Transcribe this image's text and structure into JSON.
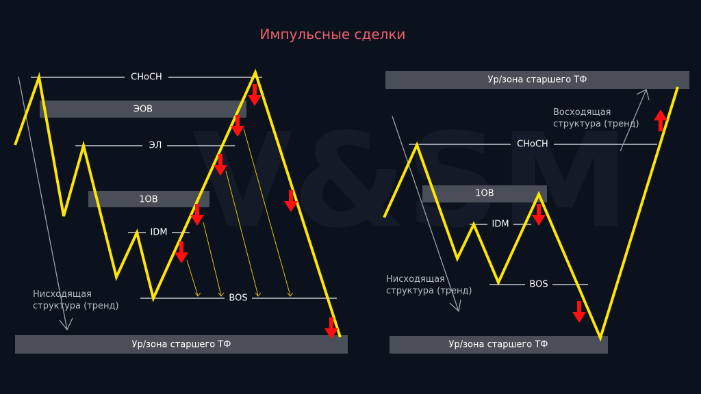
{
  "title": "Импульсные сделки",
  "colors": {
    "background": "#0b111d",
    "title": "#f0606e",
    "price_line": "#ffe600",
    "entry_arrow": "#ff1010",
    "zone": "#4a4e59"
  },
  "watermark": "V&SM",
  "left": {
    "levels": {
      "choch": "CHoCH",
      "eob": "ЭОВ",
      "el": "ЭЛ",
      "ob1": "1OB",
      "idm": "IDM",
      "bos": "BOS"
    },
    "htf_zone": "Ур/зона старшего ТФ",
    "trend_line1": "Нисходящая",
    "trend_line2": "структура (тренд)"
  },
  "right": {
    "htf_zone_top": "Ур/зона старшего ТФ",
    "htf_zone_bottom": "Ур/зона старшего ТФ",
    "levels": {
      "choch": "CHoCH",
      "ob1": "1OB",
      "idm": "IDM",
      "bos": "BOS"
    },
    "down_trend_line1": "Нисходящая",
    "down_trend_line2": "структура (тренд)",
    "up_trend_line1": "Восходящая",
    "up_trend_line2": "структура (тренд)"
  }
}
